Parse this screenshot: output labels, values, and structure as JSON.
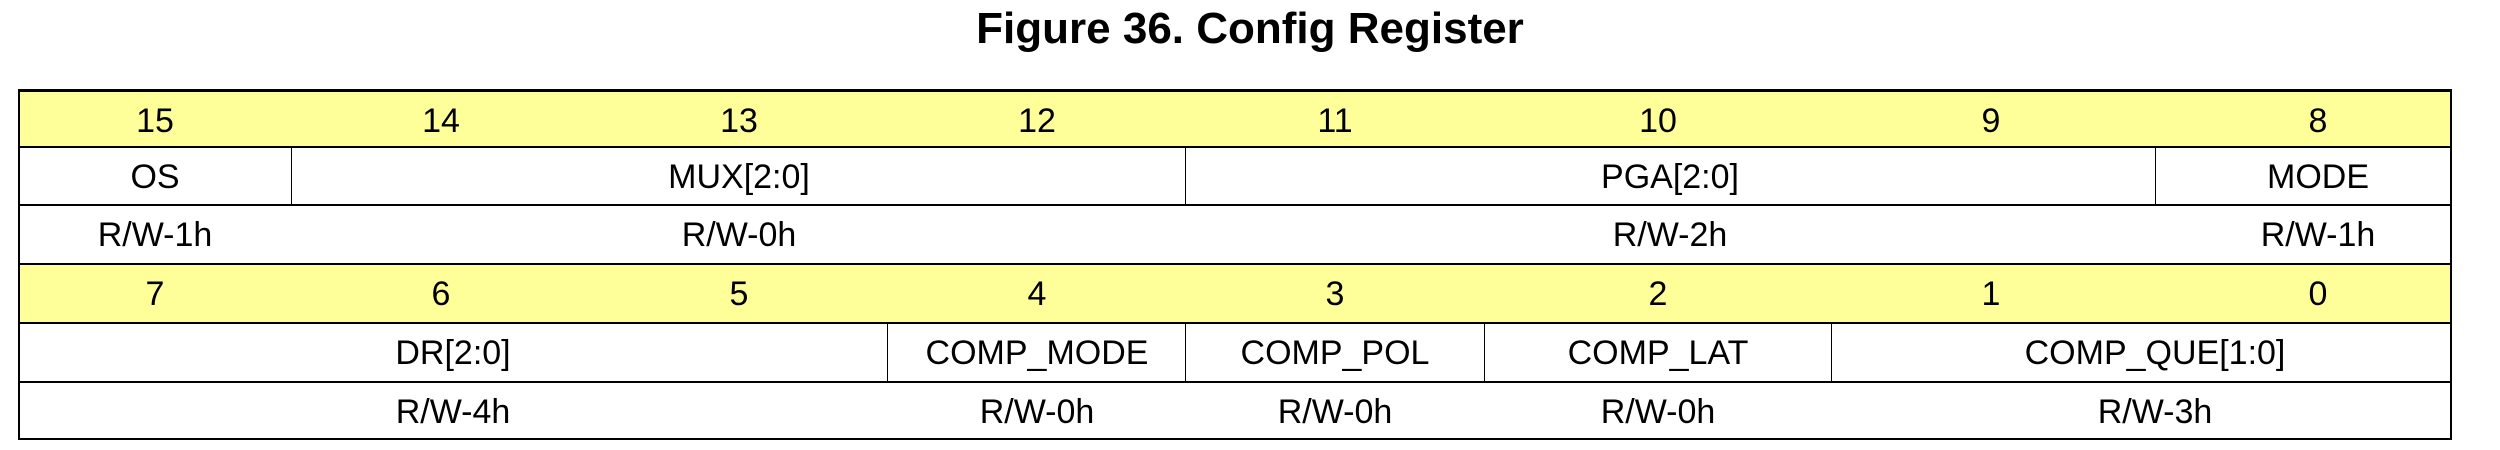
{
  "title": "Figure 36.  Config Register",
  "high_byte": {
    "bits": [
      "15",
      "14",
      "13",
      "12",
      "11",
      "10",
      "9",
      "8"
    ],
    "fields": [
      "OS",
      "MUX[2:0]",
      "PGA[2:0]",
      "MODE"
    ],
    "access": [
      "R/W-1h",
      "R/W-0h",
      "R/W-2h",
      "R/W-1h"
    ]
  },
  "low_byte": {
    "bits": [
      "7",
      "6",
      "5",
      "4",
      "3",
      "2",
      "1",
      "0"
    ],
    "fields": [
      "DR[2:0]",
      "COMP_MODE",
      "COMP_POL",
      "COMP_LAT",
      "COMP_QUE[1:0]"
    ],
    "access": [
      "R/W-4h",
      "R/W-0h",
      "R/W-0h",
      "R/W-0h",
      "R/W-3h"
    ]
  },
  "colors": {
    "bit_row": "#ffff99"
  }
}
